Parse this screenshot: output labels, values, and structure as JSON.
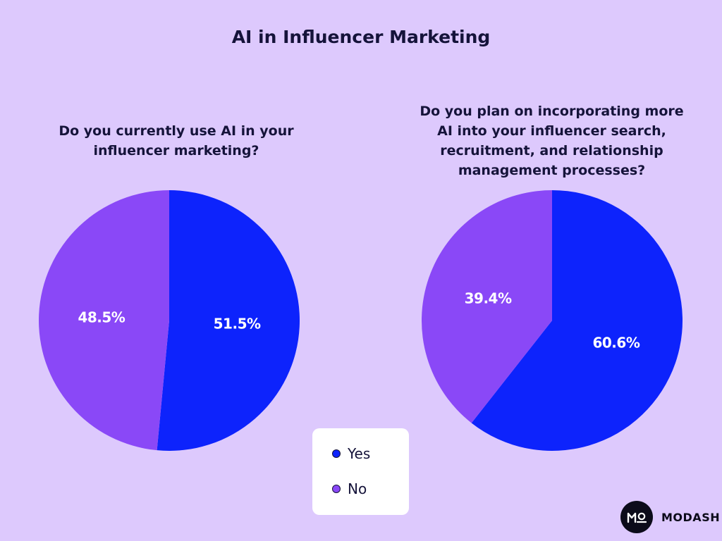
{
  "title": "AI in Influencer Marketing",
  "chart_data": [
    {
      "type": "pie",
      "title": "Do you currently use AI in your influencer marketing?",
      "categories": [
        "Yes",
        "No"
      ],
      "values": [
        51.5,
        48.5
      ],
      "labels": [
        "51.5%",
        "48.5%"
      ],
      "colors": [
        "#0d23fc",
        "#8a48f7"
      ]
    },
    {
      "type": "pie",
      "title": "Do you plan on incorporating more AI into your influencer search, recruitment, and relationship management processes?",
      "categories": [
        "Yes",
        "No"
      ],
      "values": [
        60.6,
        39.4
      ],
      "labels": [
        "60.6%",
        "39.4%"
      ],
      "colors": [
        "#0d23fc",
        "#8a48f7"
      ]
    }
  ],
  "legend": {
    "placement": "bottom-center",
    "items": [
      {
        "label": "Yes",
        "color": "#0d23fc"
      },
      {
        "label": "No",
        "color": "#8a48f7"
      }
    ]
  },
  "logo": {
    "text": "MODASH",
    "mark": "MO"
  },
  "colors": {
    "background": "#ddc9fd",
    "title_text": "#15133a",
    "yes": "#0d23fc",
    "no": "#8a48f7"
  }
}
